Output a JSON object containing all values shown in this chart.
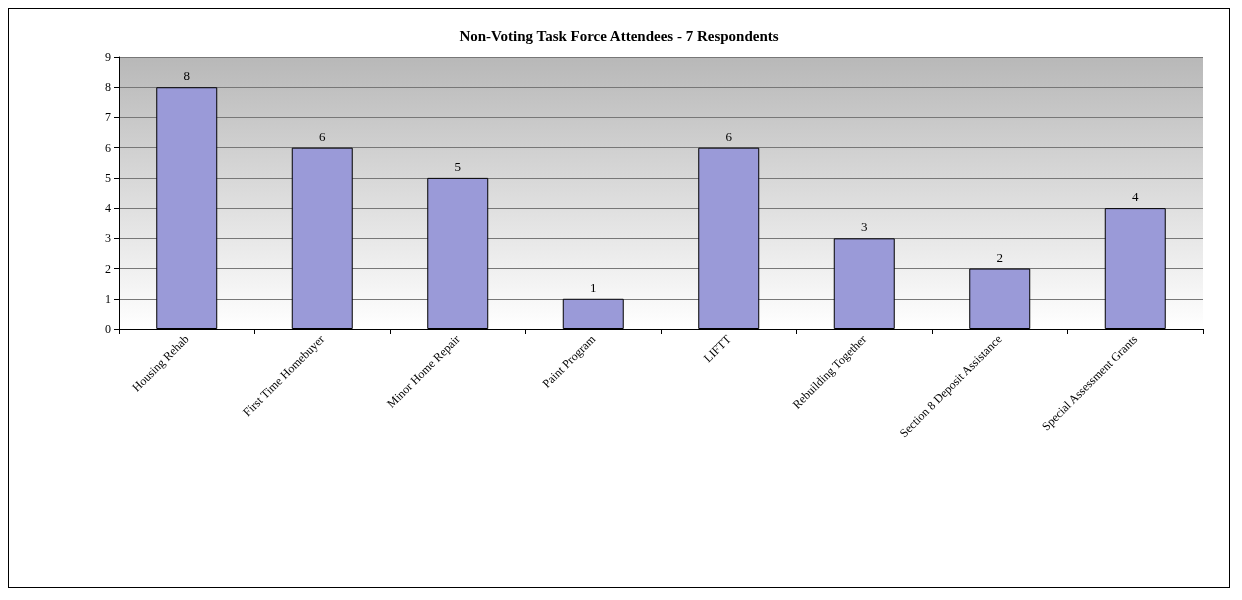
{
  "chart_data": {
    "type": "bar",
    "title": "Non-Voting Task Force Attendees - 7 Respondents",
    "categories": [
      "Housing Rehab",
      "First Time Homebuyer",
      "Minor Home Repair",
      "Paint Program",
      "LIFTT",
      "Rebuilding Together",
      "Section 8 Deposit Assistance",
      "Special Assessment Grants"
    ],
    "values": [
      8,
      6,
      5,
      1,
      6,
      3,
      2,
      4
    ],
    "color": "#9a9ad8",
    "ylim": [
      0,
      9
    ],
    "yticks": [
      0,
      1,
      2,
      3,
      4,
      5,
      6,
      7,
      8,
      9
    ],
    "grid": "y",
    "data_labels": true
  }
}
